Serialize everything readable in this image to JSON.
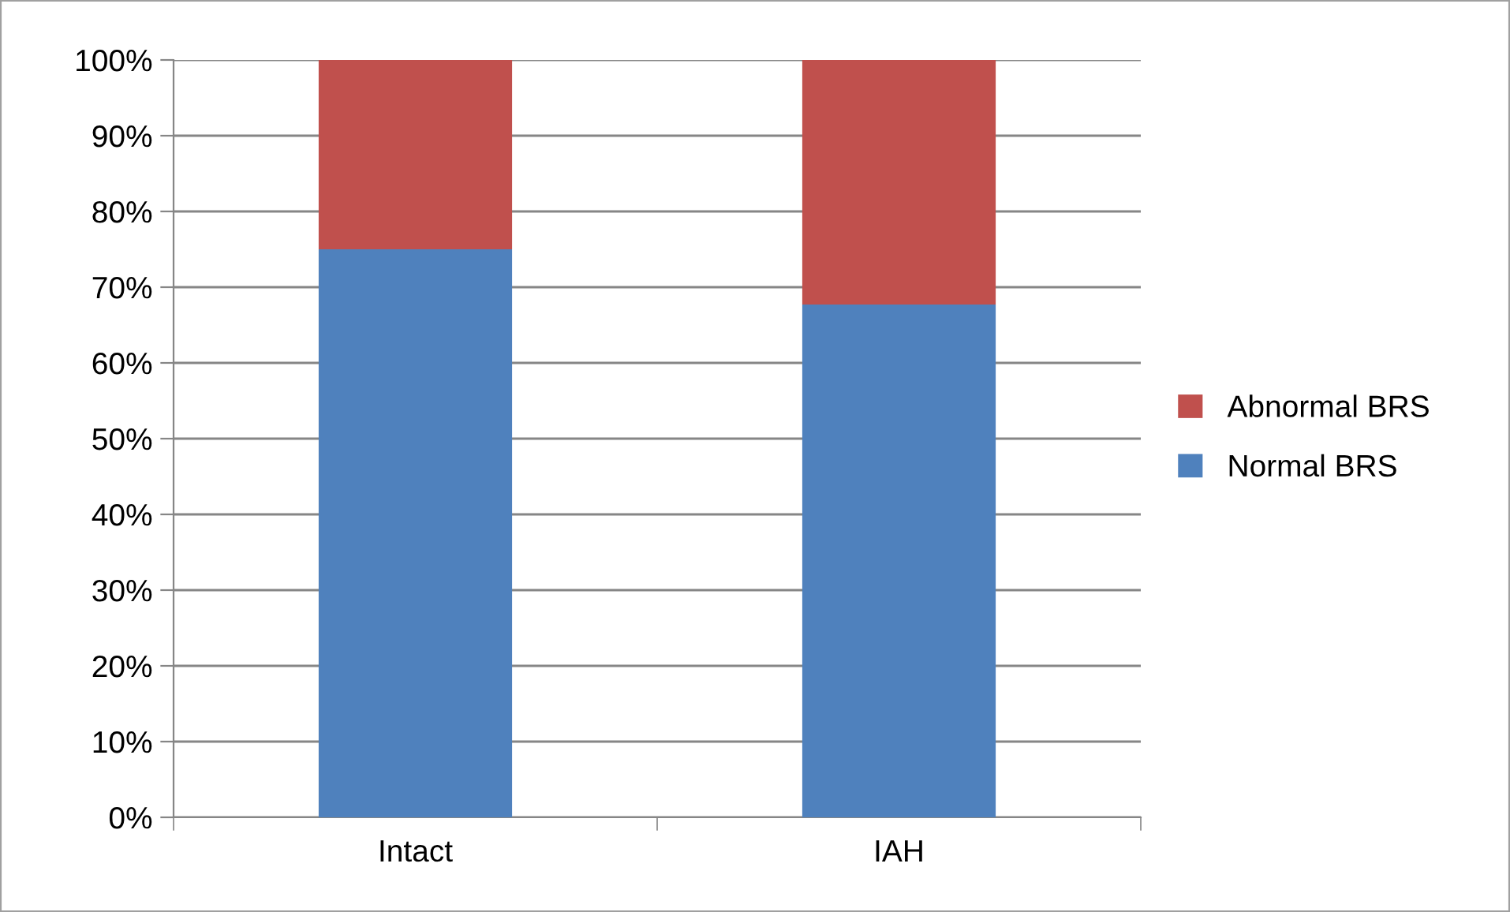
{
  "chart_data": {
    "type": "bar",
    "stacked": true,
    "categories": [
      "Intact",
      "IAH"
    ],
    "series": [
      {
        "name": "Normal BRS",
        "color": "#4f81bd",
        "values": [
          75,
          67.7
        ]
      },
      {
        "name": "Abnormal BRS",
        "color": "#c0504d",
        "values": [
          25,
          32.3
        ]
      }
    ],
    "ylim": [
      0,
      100
    ],
    "yticks": [
      {
        "value": 0,
        "label": "0%"
      },
      {
        "value": 10,
        "label": "10%"
      },
      {
        "value": 20,
        "label": "20%"
      },
      {
        "value": 30,
        "label": "30%"
      },
      {
        "value": 40,
        "label": "40%"
      },
      {
        "value": 50,
        "label": "50%"
      },
      {
        "value": 60,
        "label": "60%"
      },
      {
        "value": 70,
        "label": "70%"
      },
      {
        "value": 80,
        "label": "80%"
      },
      {
        "value": 90,
        "label": "90%"
      },
      {
        "value": 100,
        "label": "100%"
      }
    ],
    "grid": "y",
    "legend": "right"
  }
}
